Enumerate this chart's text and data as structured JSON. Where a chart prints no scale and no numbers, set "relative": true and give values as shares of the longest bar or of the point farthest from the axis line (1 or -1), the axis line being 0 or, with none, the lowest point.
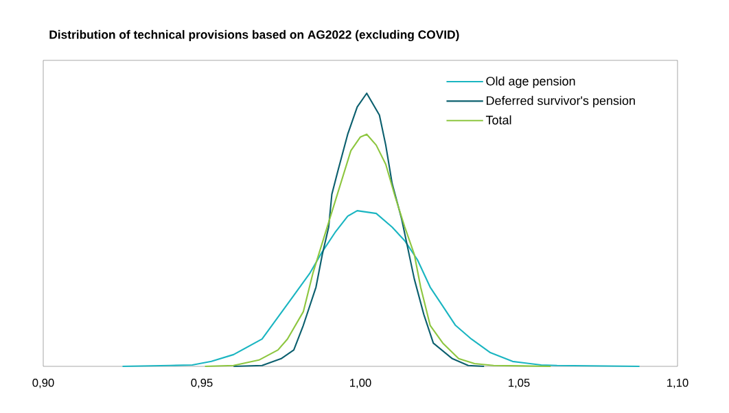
{
  "chart_data": {
    "type": "line",
    "title": "Distribution of technical provisions based on AG2022 (excluding COVID)",
    "relative": true,
    "legend": "top right",
    "tick_labels": "x",
    "xlim": [
      0.9,
      1.1
    ],
    "xticks": [
      {
        "value": 0.9,
        "label": "0,90"
      },
      {
        "value": 0.95,
        "label": "0,95"
      },
      {
        "value": 1.0,
        "label": "1,00"
      },
      {
        "value": 1.05,
        "label": "1,05"
      },
      {
        "value": 1.1,
        "label": "1,10"
      }
    ],
    "series": [
      {
        "name": "Old age pension",
        "color": "#1ab5c1",
        "x": [
          0.925,
          0.94,
          0.947,
          0.953,
          0.96,
          0.969,
          0.974,
          0.979,
          0.984,
          0.988,
          0.992,
          0.996,
          0.999,
          1.005,
          1.01,
          1.014,
          1.018,
          1.022,
          1.026,
          1.03,
          1.035,
          1.041,
          1.048,
          1.057,
          1.062,
          1.088
        ],
        "values": [
          0,
          0.003,
          0.005,
          0.018,
          0.043,
          0.1,
          0.18,
          0.26,
          0.34,
          0.42,
          0.49,
          0.55,
          0.57,
          0.56,
          0.51,
          0.46,
          0.39,
          0.29,
          0.22,
          0.15,
          0.1,
          0.05,
          0.018,
          0.005,
          0.003,
          0
        ]
      },
      {
        "name": "Deferred survivor's pension",
        "color": "#0b5f6e",
        "x": [
          0.96,
          0.969,
          0.975,
          0.979,
          0.982,
          0.986,
          0.988,
          0.99,
          0.991,
          0.993,
          0.996,
          0.999,
          1.002,
          1.006,
          1.008,
          1.01,
          1.013,
          1.015,
          1.017,
          1.02,
          1.023,
          1.029,
          1.034,
          1.039
        ],
        "values": [
          0,
          0.003,
          0.028,
          0.06,
          0.15,
          0.29,
          0.41,
          0.51,
          0.63,
          0.72,
          0.85,
          0.95,
          1.0,
          0.92,
          0.81,
          0.67,
          0.54,
          0.43,
          0.32,
          0.19,
          0.085,
          0.028,
          0.003,
          0
        ]
      },
      {
        "name": "Total",
        "color": "#8dc63f",
        "x": [
          0.951,
          0.96,
          0.968,
          0.974,
          0.977,
          0.982,
          0.985,
          0.989,
          0.993,
          0.997,
          1.0,
          1.002,
          1.005,
          1.008,
          1.011,
          1.014,
          1.017,
          1.019,
          1.022,
          1.026,
          1.031,
          1.036,
          1.042,
          1.06
        ],
        "values": [
          0,
          0.003,
          0.023,
          0.06,
          0.1,
          0.2,
          0.34,
          0.49,
          0.64,
          0.79,
          0.84,
          0.85,
          0.81,
          0.74,
          0.62,
          0.51,
          0.41,
          0.29,
          0.15,
          0.085,
          0.028,
          0.01,
          0.003,
          0
        ]
      }
    ]
  }
}
